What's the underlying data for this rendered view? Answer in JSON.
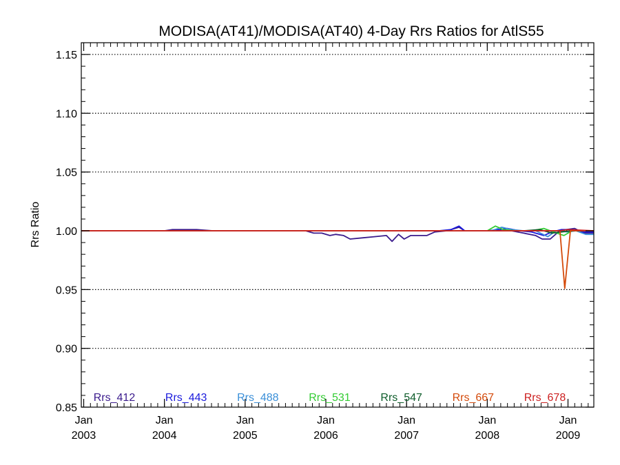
{
  "chart_data": {
    "type": "line",
    "title": "MODISA(AT41)/MODISA(AT40) 4-Day Rrs Ratios for AtlS55",
    "xlabel": "",
    "ylabel": "Rrs Ratio",
    "ylim": [
      0.85,
      1.16
    ],
    "yticks": [
      {
        "value": 0.85,
        "label": "0.85"
      },
      {
        "value": 0.9,
        "label": "0.90"
      },
      {
        "value": 0.95,
        "label": "0.95"
      },
      {
        "value": 1.0,
        "label": "1.00"
      },
      {
        "value": 1.05,
        "label": "1.05"
      },
      {
        "value": 1.1,
        "label": "1.10"
      },
      {
        "value": 1.15,
        "label": "1.15"
      }
    ],
    "xlim": [
      2002.97,
      2009.32
    ],
    "xticks": [
      {
        "value": 2003.0,
        "line1": "Jan",
        "line2": "2003"
      },
      {
        "value": 2004.0,
        "line1": "Jan",
        "line2": "2004"
      },
      {
        "value": 2005.0,
        "line1": "Jan",
        "line2": "2005"
      },
      {
        "value": 2006.0,
        "line1": "Jan",
        "line2": "2006"
      },
      {
        "value": 2007.0,
        "line1": "Jan",
        "line2": "2007"
      },
      {
        "value": 2008.0,
        "line1": "Jan",
        "line2": "2008"
      },
      {
        "value": 2009.0,
        "line1": "Jan",
        "line2": "2009"
      }
    ],
    "grid": "dotted horizontal at major y ticks",
    "legend": "bottom, inside plot, single row",
    "series": [
      {
        "name": "Rrs_412",
        "color": "#3a1a8c",
        "points": [
          [
            2002.97,
            1.0
          ],
          [
            2004.0,
            1.0
          ],
          [
            2004.1,
            1.001
          ],
          [
            2004.4,
            1.001
          ],
          [
            2004.6,
            1.0
          ],
          [
            2005.75,
            1.0
          ],
          [
            2005.85,
            0.998
          ],
          [
            2005.95,
            0.998
          ],
          [
            2006.05,
            0.996
          ],
          [
            2006.12,
            0.997
          ],
          [
            2006.22,
            0.996
          ],
          [
            2006.3,
            0.993
          ],
          [
            2006.45,
            0.994
          ],
          [
            2006.6,
            0.995
          ],
          [
            2006.75,
            0.996
          ],
          [
            2006.82,
            0.991
          ],
          [
            2006.9,
            0.997
          ],
          [
            2006.97,
            0.993
          ],
          [
            2007.05,
            0.996
          ],
          [
            2007.15,
            0.996
          ],
          [
            2007.25,
            0.996
          ],
          [
            2007.35,
            0.999
          ],
          [
            2007.5,
            1.0
          ],
          [
            2007.65,
            1.003
          ],
          [
            2007.72,
            1.0
          ],
          [
            2008.0,
            1.0
          ],
          [
            2008.12,
            1.0
          ],
          [
            2008.3,
            1.0
          ],
          [
            2008.45,
            0.998
          ],
          [
            2008.6,
            0.996
          ],
          [
            2008.68,
            0.993
          ],
          [
            2008.78,
            0.993
          ],
          [
            2008.88,
            0.999
          ],
          [
            2008.98,
            1.001
          ],
          [
            2009.08,
            1.002
          ],
          [
            2009.2,
            0.998
          ],
          [
            2009.32,
            0.998
          ]
        ]
      },
      {
        "name": "Rrs_443",
        "color": "#1a1adc",
        "points": [
          [
            2002.97,
            1.0
          ],
          [
            2007.4,
            1.0
          ],
          [
            2007.55,
            1.001
          ],
          [
            2007.65,
            1.004
          ],
          [
            2007.72,
            1.0
          ],
          [
            2008.0,
            1.0
          ],
          [
            2008.15,
            1.001
          ],
          [
            2008.25,
            1.002
          ],
          [
            2008.4,
            1.0
          ],
          [
            2008.55,
            0.999
          ],
          [
            2008.7,
            0.996
          ],
          [
            2008.8,
            0.999
          ],
          [
            2008.92,
            1.001
          ],
          [
            2009.05,
            1.001
          ],
          [
            2009.18,
            0.999
          ],
          [
            2009.32,
            0.999
          ]
        ]
      },
      {
        "name": "Rrs_488",
        "color": "#3a8fd8",
        "points": [
          [
            2002.97,
            1.0
          ],
          [
            2008.05,
            1.0
          ],
          [
            2008.18,
            1.003
          ],
          [
            2008.3,
            1.001
          ],
          [
            2008.45,
            1.0
          ],
          [
            2008.6,
            1.0
          ],
          [
            2008.75,
            0.995
          ],
          [
            2008.85,
            1.0
          ],
          [
            2009.0,
            0.999
          ],
          [
            2009.1,
            1.0
          ],
          [
            2009.22,
            0.997
          ],
          [
            2009.32,
            0.997
          ]
        ]
      },
      {
        "name": "Rrs_531",
        "color": "#33cc33",
        "points": [
          [
            2002.97,
            1.0
          ],
          [
            2008.0,
            1.0
          ],
          [
            2008.1,
            1.004
          ],
          [
            2008.2,
            1.001
          ],
          [
            2008.35,
            1.0
          ],
          [
            2008.55,
            1.0
          ],
          [
            2008.7,
            1.002
          ],
          [
            2008.82,
            0.999
          ],
          [
            2008.95,
            0.996
          ],
          [
            2009.05,
            1.0
          ],
          [
            2009.32,
            1.0
          ]
        ]
      },
      {
        "name": "Rrs_547",
        "color": "#0d5c2a",
        "points": [
          [
            2002.97,
            1.0
          ],
          [
            2008.45,
            1.0
          ],
          [
            2008.65,
            1.001
          ],
          [
            2008.8,
            0.998
          ],
          [
            2008.92,
            0.999
          ],
          [
            2009.05,
            1.0
          ],
          [
            2009.32,
            1.0
          ]
        ]
      },
      {
        "name": "Rrs_667",
        "color": "#d44a0a",
        "points": [
          [
            2002.97,
            1.0
          ],
          [
            2008.8,
            1.0
          ],
          [
            2008.9,
            1.0
          ],
          [
            2008.96,
            0.951
          ],
          [
            2009.03,
            1.0
          ],
          [
            2009.32,
            1.0
          ]
        ]
      },
      {
        "name": "Rrs_678",
        "color": "#cc1f1f",
        "points": [
          [
            2002.97,
            1.0
          ],
          [
            2008.9,
            1.0
          ],
          [
            2009.0,
            1.001
          ],
          [
            2009.32,
            1.0
          ]
        ]
      }
    ]
  }
}
